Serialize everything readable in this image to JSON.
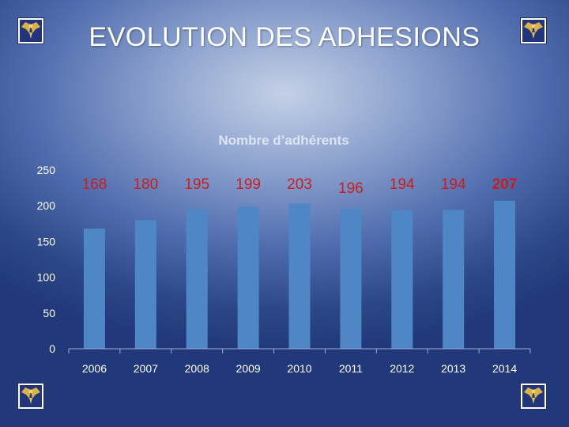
{
  "slide": {
    "title": "EVOLUTION DES ADHESIONS"
  },
  "emblems": [
    {
      "name": "emblem-top-left-icon",
      "icon": "winged-eagle-emblem"
    },
    {
      "name": "emblem-top-right-icon",
      "icon": "winged-eagle-emblem"
    },
    {
      "name": "emblem-bottom-left-icon",
      "icon": "winged-eagle-emblem"
    },
    {
      "name": "emblem-bottom-right-icon",
      "icon": "winged-eagle-emblem"
    }
  ],
  "colors": {
    "bar": "#4f86c6",
    "data_label": "#c81e1e",
    "axis_text": "#ffffff"
  },
  "chart_data": {
    "type": "bar",
    "title": "Nombre d’adhérents",
    "categories": [
      "2006",
      "2007",
      "2008",
      "2009",
      "2010",
      "2011",
      "2012",
      "2013",
      "2014"
    ],
    "values": [
      168,
      180,
      195,
      199,
      203,
      196,
      194,
      194,
      207
    ],
    "data_labels": [
      "168",
      "180",
      "195",
      "199",
      "203",
      "196",
      "194",
      "194",
      "207"
    ],
    "ylim": [
      0,
      250
    ],
    "yticks": [
      "0",
      "50",
      "100",
      "150",
      "200",
      "250"
    ],
    "xlabel": "",
    "ylabel": "",
    "grid": false,
    "legend": "none"
  }
}
